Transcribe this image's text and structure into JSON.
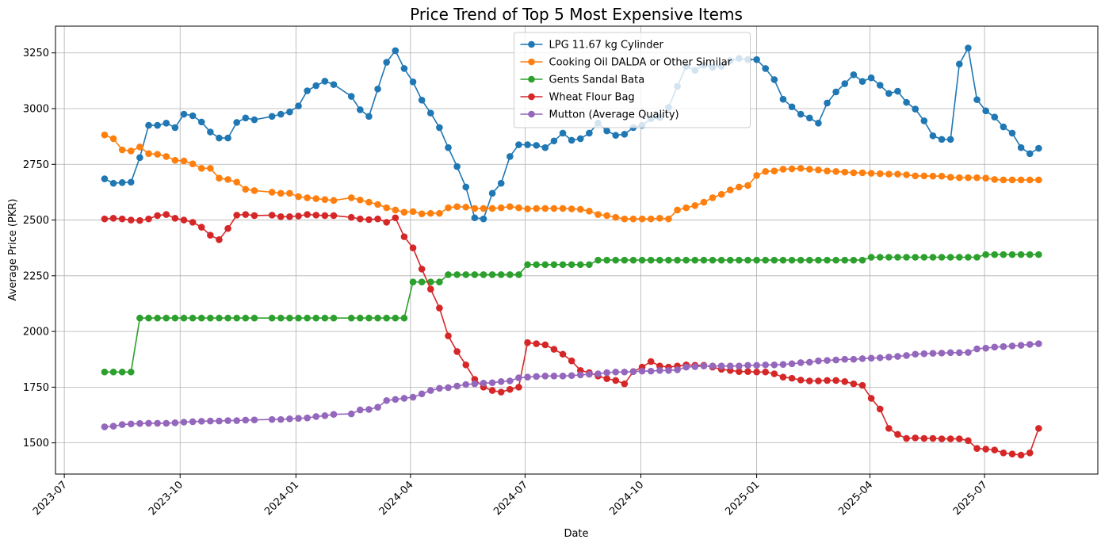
{
  "chart_data": {
    "type": "line",
    "title": "Price Trend of Top 5 Most Expensive Items",
    "xlabel": "Date",
    "ylabel": "Average Price (PKR)",
    "grid": true,
    "legend": "upper center",
    "xlim": [
      "2023-06-24",
      "2025-09-29"
    ],
    "xticks": [
      {
        "value": "2023-07-01",
        "label": "2023-07"
      },
      {
        "value": "2023-10-01",
        "label": "2023-10"
      },
      {
        "value": "2024-01-01",
        "label": "2024-01"
      },
      {
        "value": "2024-04-01",
        "label": "2024-04"
      },
      {
        "value": "2024-07-01",
        "label": "2024-07"
      },
      {
        "value": "2024-10-01",
        "label": "2024-10"
      },
      {
        "value": "2025-01-01",
        "label": "2025-01"
      },
      {
        "value": "2025-04-01",
        "label": "2025-04"
      },
      {
        "value": "2025-07-01",
        "label": "2025-07"
      }
    ],
    "ylim": [
      1360,
      3370
    ],
    "yticks": [
      1500,
      1750,
      2000,
      2250,
      2500,
      2750,
      3000,
      3250
    ],
    "x": [
      "2023-08-02",
      "2023-08-09",
      "2023-08-16",
      "2023-08-23",
      "2023-08-30",
      "2023-09-06",
      "2023-09-13",
      "2023-09-20",
      "2023-09-27",
      "2023-10-04",
      "2023-10-11",
      "2023-10-18",
      "2023-10-25",
      "2023-11-01",
      "2023-11-08",
      "2023-11-15",
      "2023-11-22",
      "2023-11-29",
      "2023-12-13",
      "2023-12-20",
      "2023-12-27",
      "2024-01-03",
      "2024-01-10",
      "2024-01-17",
      "2024-01-24",
      "2024-01-31",
      "2024-02-14",
      "2024-02-21",
      "2024-02-28",
      "2024-03-06",
      "2024-03-13",
      "2024-03-20",
      "2024-03-27",
      "2024-04-03",
      "2024-04-10",
      "2024-04-17",
      "2024-04-24",
      "2024-05-01",
      "2024-05-08",
      "2024-05-15",
      "2024-05-22",
      "2024-05-29",
      "2024-06-05",
      "2024-06-12",
      "2024-06-19",
      "2024-06-26",
      "2024-07-03",
      "2024-07-10",
      "2024-07-17",
      "2024-07-24",
      "2024-07-31",
      "2024-08-07",
      "2024-08-14",
      "2024-08-21",
      "2024-08-28",
      "2024-09-04",
      "2024-09-11",
      "2024-09-18",
      "2024-09-25",
      "2024-10-02",
      "2024-10-09",
      "2024-10-16",
      "2024-10-23",
      "2024-10-30",
      "2024-11-06",
      "2024-11-13",
      "2024-11-20",
      "2024-11-27",
      "2024-12-04",
      "2024-12-11",
      "2024-12-18",
      "2024-12-25",
      "2025-01-01",
      "2025-01-08",
      "2025-01-15",
      "2025-01-22",
      "2025-01-29",
      "2025-02-05",
      "2025-02-12",
      "2025-02-19",
      "2025-02-26",
      "2025-03-05",
      "2025-03-12",
      "2025-03-19",
      "2025-03-26",
      "2025-04-02",
      "2025-04-09",
      "2025-04-16",
      "2025-04-23",
      "2025-04-30",
      "2025-05-07",
      "2025-05-14",
      "2025-05-21",
      "2025-05-28",
      "2025-06-04",
      "2025-06-11",
      "2025-06-18",
      "2025-06-25",
      "2025-07-02",
      "2025-07-09",
      "2025-07-16",
      "2025-07-23",
      "2025-07-30",
      "2025-08-06",
      "2025-08-13"
    ],
    "series": [
      {
        "name": "LPG 11.67 kg Cylinder",
        "color": "#1f77b4",
        "values": [
          2685,
          2665,
          2668,
          2670,
          2780,
          2925,
          2925,
          2935,
          2915,
          2975,
          2968,
          2940,
          2895,
          2868,
          2868,
          2938,
          2958,
          2950,
          2965,
          2975,
          2985,
          3012,
          3080,
          3103,
          3123,
          3108,
          3055,
          2995,
          2965,
          3088,
          3208,
          3260,
          3180,
          3120,
          3038,
          2980,
          2915,
          2825,
          2740,
          2648,
          2510,
          2505,
          2620,
          2665,
          2785,
          2838,
          2838,
          2835,
          2825,
          2855,
          2890,
          2858,
          2865,
          2890,
          2935,
          2900,
          2880,
          2885,
          2915,
          2925,
          2955,
          2960,
          3005,
          3100,
          3190,
          3172,
          3195,
          3185,
          3190,
          3215,
          3225,
          3220,
          3220,
          3180,
          3130,
          3042,
          3008,
          2975,
          2958,
          2935,
          3025,
          3075,
          3112,
          3152,
          3122,
          3138,
          3105,
          3068,
          3078,
          3028,
          2998,
          2945,
          2878,
          2862,
          2862,
          3200,
          3272,
          3040,
          2990,
          2962,
          2918,
          2890,
          2825,
          2798,
          2822
        ]
      },
      {
        "name": "Cooking Oil DALDA or Other Similar",
        "color": "#ff7f0e",
        "values": [
          2882,
          2865,
          2815,
          2810,
          2828,
          2798,
          2795,
          2785,
          2768,
          2765,
          2752,
          2732,
          2732,
          2688,
          2682,
          2670,
          2638,
          2632,
          2625,
          2620,
          2620,
          2605,
          2600,
          2596,
          2592,
          2588,
          2600,
          2590,
          2580,
          2570,
          2555,
          2545,
          2535,
          2538,
          2528,
          2530,
          2530,
          2555,
          2560,
          2558,
          2552,
          2552,
          2552,
          2555,
          2560,
          2555,
          2550,
          2552,
          2552,
          2552,
          2552,
          2550,
          2548,
          2540,
          2525,
          2520,
          2512,
          2505,
          2505,
          2505,
          2505,
          2508,
          2505,
          2545,
          2555,
          2565,
          2580,
          2600,
          2615,
          2635,
          2648,
          2655,
          2700,
          2718,
          2720,
          2728,
          2730,
          2732,
          2728,
          2725,
          2720,
          2718,
          2715,
          2712,
          2712,
          2710,
          2708,
          2706,
          2706,
          2703,
          2698,
          2698,
          2697,
          2697,
          2692,
          2690,
          2690,
          2690,
          2688,
          2682,
          2680,
          2680,
          2680,
          2680,
          2680
        ]
      },
      {
        "name": "Gents Sandal Bata",
        "color": "#2ca02c",
        "values": [
          1818,
          1818,
          1818,
          1818,
          2060,
          2060,
          2060,
          2060,
          2060,
          2060,
          2060,
          2060,
          2060,
          2060,
          2060,
          2060,
          2060,
          2060,
          2060,
          2060,
          2060,
          2060,
          2060,
          2060,
          2060,
          2060,
          2060,
          2060,
          2060,
          2060,
          2060,
          2060,
          2060,
          2222,
          2222,
          2222,
          2222,
          2255,
          2255,
          2255,
          2255,
          2255,
          2255,
          2255,
          2255,
          2255,
          2300,
          2300,
          2300,
          2300,
          2300,
          2300,
          2300,
          2300,
          2320,
          2320,
          2320,
          2320,
          2320,
          2320,
          2320,
          2320,
          2320,
          2320,
          2320,
          2320,
          2320,
          2320,
          2320,
          2320,
          2320,
          2320,
          2320,
          2320,
          2320,
          2320,
          2320,
          2320,
          2320,
          2320,
          2320,
          2320,
          2320,
          2320,
          2320,
          2333,
          2333,
          2333,
          2333,
          2333,
          2333,
          2333,
          2333,
          2333,
          2333,
          2333,
          2333,
          2333,
          2345,
          2345,
          2345,
          2345,
          2345,
          2345,
          2345
        ]
      },
      {
        "name": "Wheat Flour Bag",
        "color": "#d62728",
        "values": [
          2505,
          2508,
          2505,
          2500,
          2498,
          2505,
          2520,
          2525,
          2508,
          2500,
          2490,
          2468,
          2432,
          2412,
          2462,
          2522,
          2525,
          2520,
          2522,
          2515,
          2515,
          2518,
          2525,
          2522,
          2520,
          2520,
          2512,
          2505,
          2502,
          2505,
          2490,
          2510,
          2425,
          2375,
          2280,
          2190,
          2105,
          1980,
          1910,
          1850,
          1785,
          1750,
          1735,
          1728,
          1740,
          1750,
          1950,
          1945,
          1940,
          1920,
          1898,
          1868,
          1825,
          1815,
          1800,
          1788,
          1780,
          1765,
          1820,
          1840,
          1865,
          1845,
          1840,
          1845,
          1850,
          1848,
          1848,
          1840,
          1830,
          1825,
          1820,
          1820,
          1818,
          1818,
          1810,
          1795,
          1790,
          1782,
          1778,
          1778,
          1780,
          1780,
          1775,
          1765,
          1758,
          1700,
          1652,
          1565,
          1538,
          1520,
          1522,
          1520,
          1520,
          1518,
          1518,
          1518,
          1510,
          1475,
          1472,
          1468,
          1455,
          1450,
          1445,
          1455,
          1565
        ]
      },
      {
        "name": "Mutton (Average Quality)",
        "color": "#9467bd",
        "values": [
          1572,
          1575,
          1582,
          1585,
          1587,
          1588,
          1588,
          1588,
          1590,
          1593,
          1595,
          1597,
          1598,
          1598,
          1600,
          1600,
          1602,
          1603,
          1605,
          1605,
          1608,
          1610,
          1612,
          1618,
          1622,
          1628,
          1630,
          1648,
          1650,
          1660,
          1690,
          1695,
          1700,
          1705,
          1720,
          1735,
          1745,
          1748,
          1755,
          1762,
          1765,
          1768,
          1770,
          1775,
          1778,
          1792,
          1795,
          1798,
          1800,
          1800,
          1800,
          1802,
          1805,
          1808,
          1810,
          1815,
          1818,
          1818,
          1820,
          1822,
          1822,
          1825,
          1825,
          1828,
          1840,
          1842,
          1845,
          1845,
          1845,
          1845,
          1845,
          1848,
          1848,
          1850,
          1850,
          1852,
          1855,
          1860,
          1862,
          1868,
          1870,
          1872,
          1875,
          1875,
          1878,
          1880,
          1882,
          1885,
          1888,
          1892,
          1898,
          1900,
          1902,
          1903,
          1905,
          1905,
          1906,
          1922,
          1925,
          1930,
          1932,
          1935,
          1938,
          1942,
          1945
        ]
      }
    ]
  }
}
